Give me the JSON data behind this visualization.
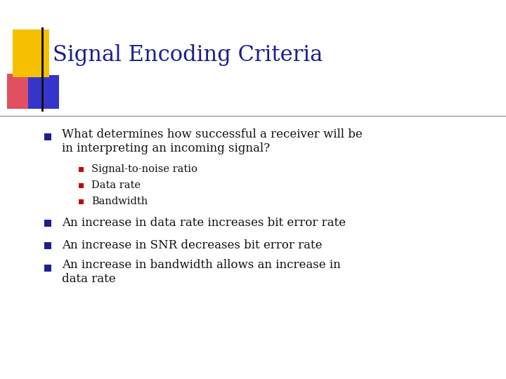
{
  "title": "Signal Encoding Criteria",
  "title_color": "#1e1e8f",
  "title_fontsize": 22,
  "background_color": "#ffffff",
  "bullet_color": "#1e1e8f",
  "sub_bullet_color": "#cc0000",
  "body_fontsize": 12,
  "sub_fontsize": 10.5,
  "bullet1_line1": "What determines how successful a receiver will be",
  "bullet1_line2": "in interpreting an incoming signal?",
  "sub_bullets": [
    "Signal-to-noise ratio",
    "Data rate",
    "Bandwidth"
  ],
  "bullet2": "An increase in data rate increases bit error rate",
  "bullet3": "An increase in SNR decreases bit error rate",
  "bullet4_line1": "An increase in bandwidth allows an increase in",
  "bullet4_line2": "data rate",
  "logo_yellow": "#f5c000",
  "logo_red": "#e05060",
  "logo_blue": "#3535cc",
  "logo_line": "#111111",
  "divider_color": "#888888"
}
